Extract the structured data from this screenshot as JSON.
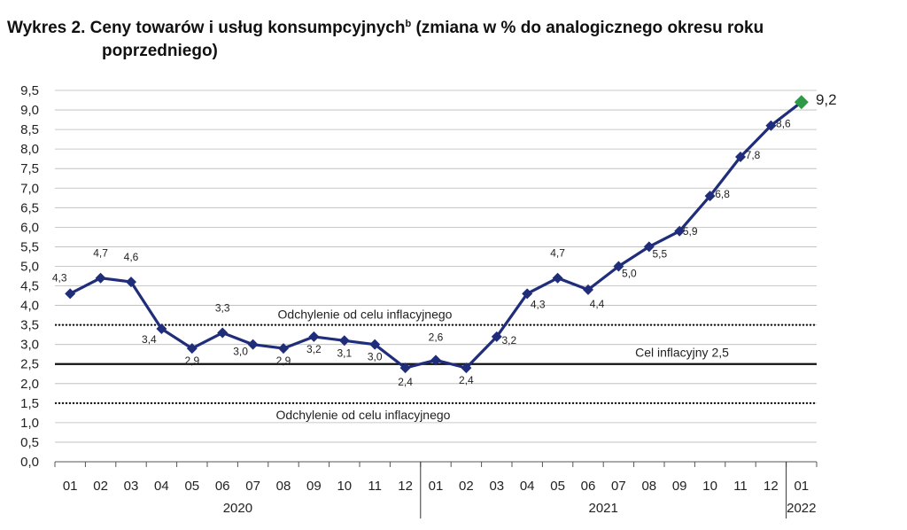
{
  "title": {
    "main": "Wykres 2. Ceny towarów i usług konsumpcyjnych",
    "superscript": "b",
    "rest": " (zmiana w % do analogicznego okresu roku",
    "line2": "poprzedniego)"
  },
  "chart_data": {
    "type": "line",
    "categories": [
      "01",
      "02",
      "03",
      "04",
      "05",
      "06",
      "07",
      "08",
      "09",
      "10",
      "11",
      "12",
      "01",
      "02",
      "03",
      "04",
      "05",
      "06",
      "07",
      "08",
      "09",
      "10",
      "11",
      "12",
      "01"
    ],
    "years": [
      {
        "label": "2020",
        "start": 0,
        "end": 11
      },
      {
        "label": "2021",
        "start": 12,
        "end": 23
      },
      {
        "label": "2022",
        "start": 24,
        "end": 24
      }
    ],
    "series": [
      {
        "values": [
          4.3,
          4.7,
          4.6,
          3.4,
          2.9,
          3.3,
          3.0,
          2.9,
          3.2,
          3.1,
          3.0,
          2.4,
          2.6,
          2.4,
          3.2,
          4.3,
          4.7,
          4.4,
          5.0,
          5.5,
          5.9,
          6.8,
          7.8,
          8.6,
          9.2
        ],
        "labels": [
          "4,3",
          "4,7",
          "4,6",
          "3,4",
          "2,9",
          "3,3",
          "3,0",
          "2,9",
          "3,2",
          "3,1",
          "3,0",
          "2,4",
          "2,6",
          "2,4",
          "3,2",
          "4,3",
          "4,7",
          "4,4",
          "5,0",
          "5,5",
          "5,9",
          "6,8",
          "7,8",
          "8,6",
          "9,2"
        ],
        "color": "#1f2d7a",
        "last_point_color": "#2e9a47"
      }
    ],
    "ylim": [
      0,
      9.5
    ],
    "yticks": [
      "0,0",
      "0,5",
      "1,0",
      "1,5",
      "2,0",
      "2,5",
      "3,0",
      "3,5",
      "4,0",
      "4,5",
      "5,0",
      "5,5",
      "6,0",
      "6,5",
      "7,0",
      "7,5",
      "8,0",
      "8,5",
      "9,0",
      "9,5"
    ],
    "grid": true,
    "reference_lines": [
      {
        "value": 3.5,
        "style": "dotted",
        "label": "Odchylenie od celu inflacyjnego"
      },
      {
        "value": 2.5,
        "style": "solid",
        "label": "Cel inflacyjny 2,5"
      },
      {
        "value": 1.5,
        "style": "dotted",
        "label": "Odchylenie od celu inflacyjnego"
      }
    ]
  }
}
